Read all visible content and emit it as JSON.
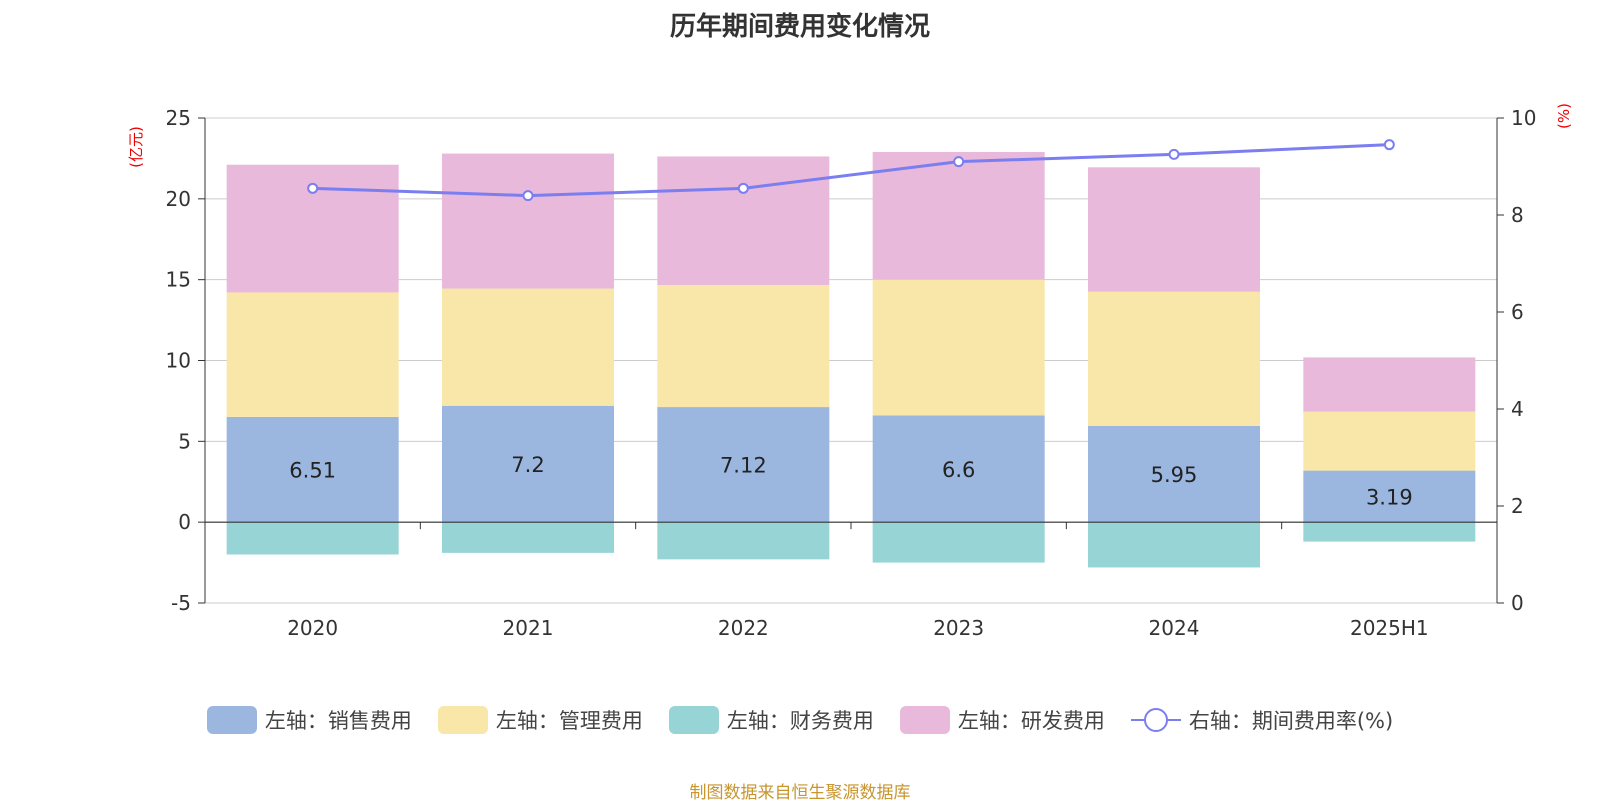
{
  "chart_data": {
    "type": "bar",
    "title": "历年期间费用变化情况",
    "categories": [
      "2020",
      "2021",
      "2022",
      "2023",
      "2024",
      "2025H1"
    ],
    "left_axis": {
      "unit": "(亿元)",
      "ticks": [
        "25",
        "20",
        "15",
        "10",
        "5",
        "0",
        "-5"
      ],
      "ylim": [
        -5,
        25
      ]
    },
    "right_axis": {
      "unit": "(%)",
      "ticks": [
        "10",
        "8",
        "6",
        "4",
        "2",
        "0"
      ],
      "ylim": [
        0,
        10
      ]
    },
    "series": [
      {
        "name": "左轴：销售费用",
        "kind": "stacked-bar",
        "color": "#9bb7e0",
        "values": [
          6.51,
          7.2,
          7.12,
          6.6,
          5.95,
          3.19
        ],
        "labels": [
          "6.51",
          "7.2",
          "7.12",
          "6.6",
          "5.95",
          "3.19"
        ]
      },
      {
        "name": "左轴：管理费用",
        "kind": "stacked-bar",
        "color": "#f8e7a8",
        "values": [
          7.7,
          7.25,
          7.55,
          8.4,
          8.3,
          3.65
        ]
      },
      {
        "name": "左轴：财务费用",
        "kind": "stacked-bar",
        "color": "#97d4d5",
        "values": [
          -2.0,
          -1.9,
          -2.3,
          -2.5,
          -2.8,
          -1.2
        ]
      },
      {
        "name": "左轴：研发费用",
        "kind": "stacked-bar",
        "color": "#e8b9da",
        "values": [
          7.9,
          8.35,
          7.95,
          7.9,
          7.7,
          3.35
        ]
      },
      {
        "name": "右轴：期间费用率(%)",
        "kind": "line",
        "color": "#7a7ef0",
        "values": [
          8.55,
          8.4,
          8.55,
          9.1,
          9.25,
          9.45
        ]
      }
    ],
    "grid": true,
    "legend_position": "bottom"
  },
  "source_text": "制图数据来自恒生聚源数据库"
}
